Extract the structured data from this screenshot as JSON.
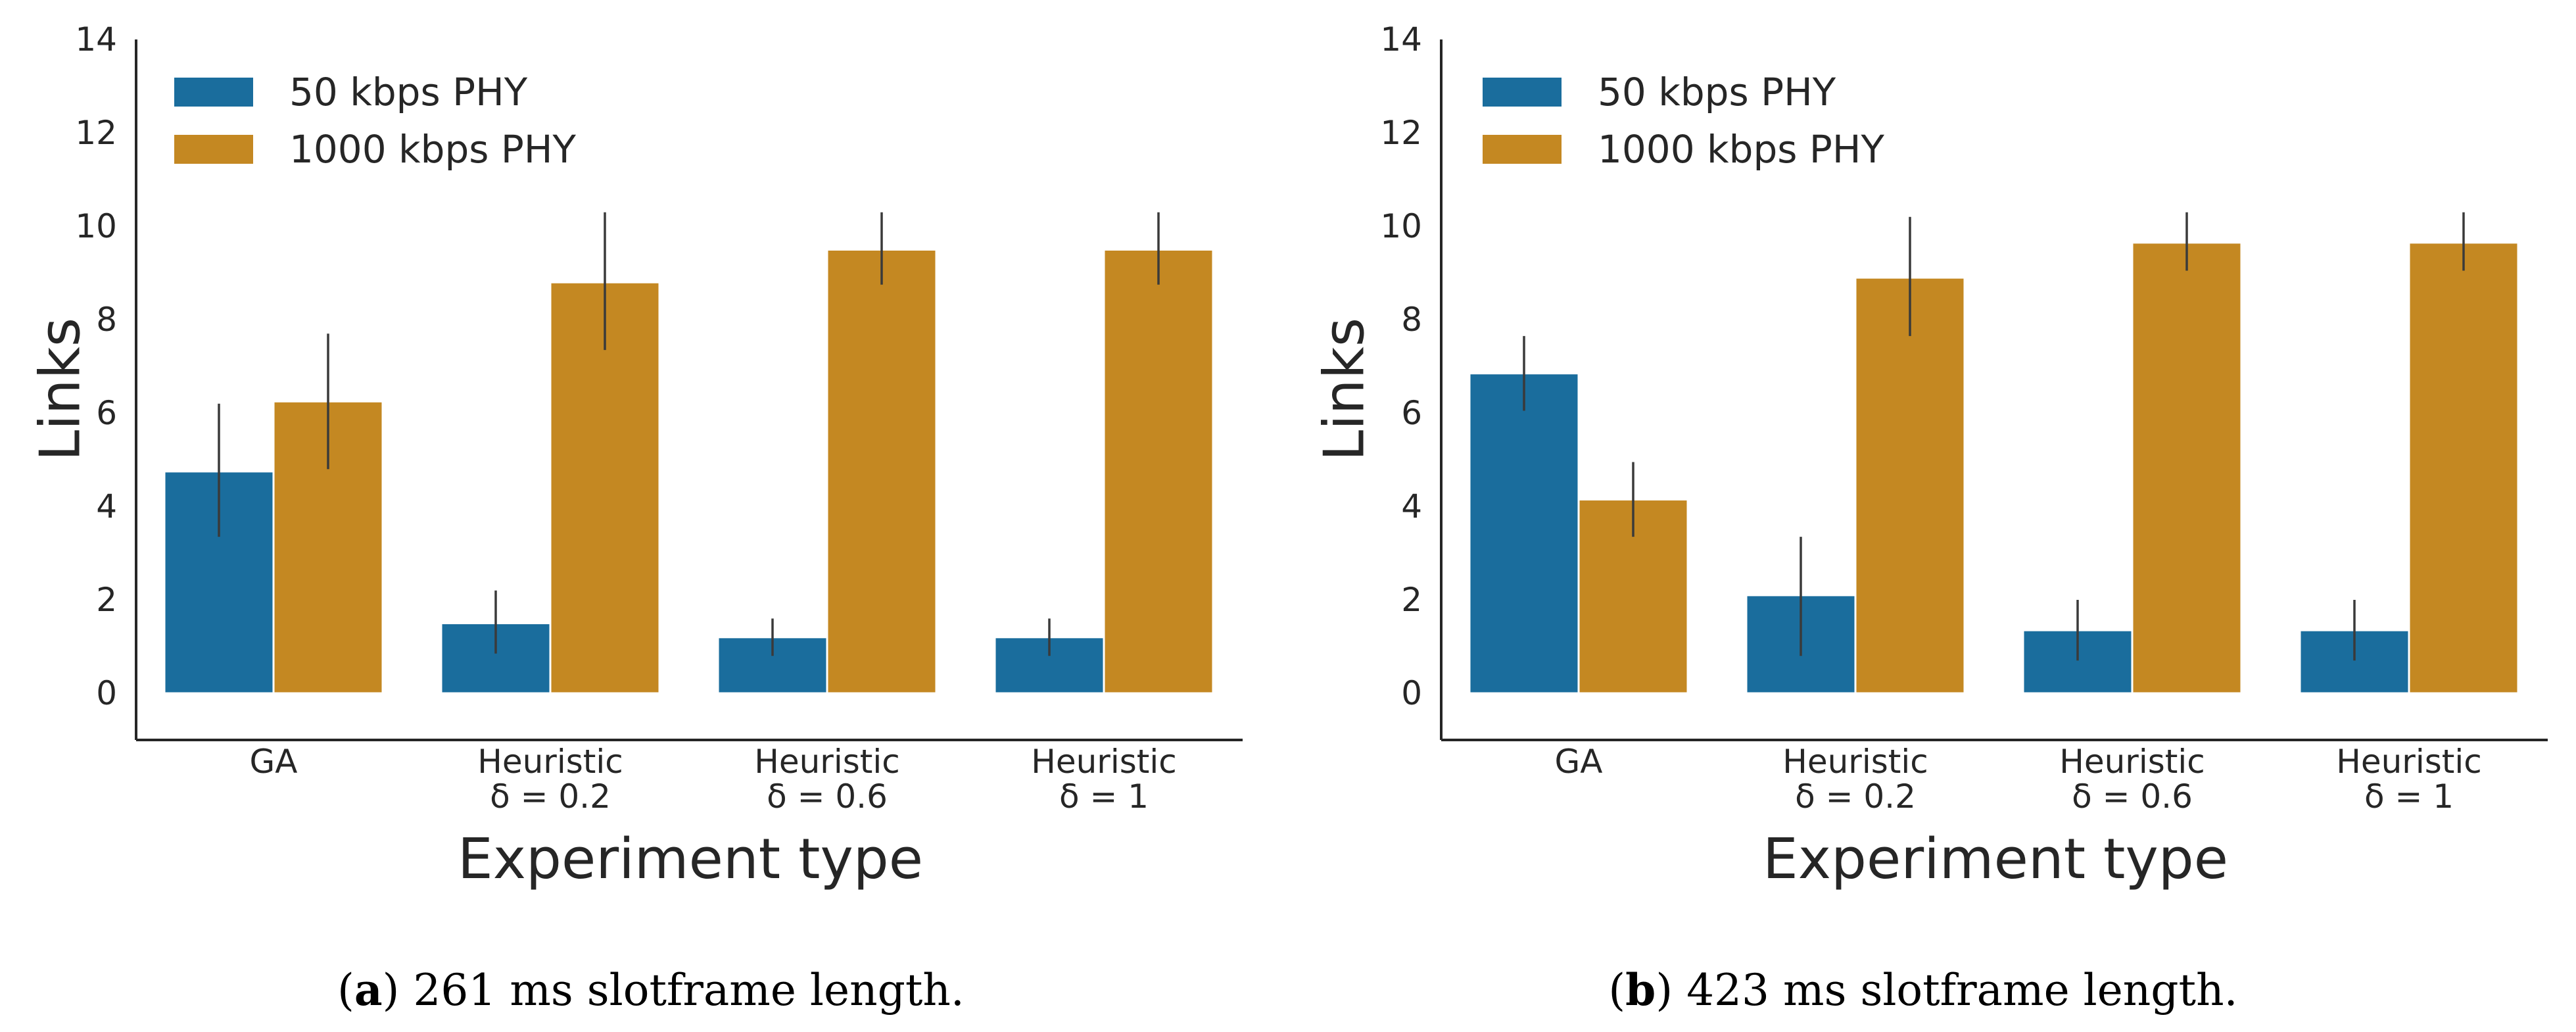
{
  "figure": {
    "captions": [
      {
        "label": "a",
        "text": "261 ms slotframe length."
      },
      {
        "label": "b",
        "text": "423 ms slotframe length."
      }
    ]
  },
  "colors": {
    "series_0": "#1a6d9d",
    "series_1": "#c48822"
  },
  "chart_data": [
    {
      "type": "bar",
      "title": "",
      "xlabel": "Experiment type",
      "ylabel": "Links",
      "ylim": [
        -1,
        14
      ],
      "yticks": [
        "0",
        "2",
        "4",
        "6",
        "8",
        "10",
        "12",
        "14"
      ],
      "ytick_values": [
        0,
        2,
        4,
        6,
        8,
        10,
        12,
        14
      ],
      "categories": [
        {
          "line1": "GA",
          "line2": ""
        },
        {
          "line1": "Heuristic",
          "line2": "δ = 0.2"
        },
        {
          "line1": "Heuristic",
          "line2": "δ = 0.6"
        },
        {
          "line1": "Heuristic",
          "line2": "δ = 1"
        }
      ],
      "legend_position": "top-left",
      "series": [
        {
          "name": "50 kbps PHY",
          "values": [
            4.75,
            1.5,
            1.2,
            1.2
          ],
          "err_low": [
            3.35,
            0.85,
            0.8,
            0.8
          ],
          "err_high": [
            6.2,
            2.2,
            1.6,
            1.6
          ]
        },
        {
          "name": "1000 kbps PHY",
          "values": [
            6.25,
            8.8,
            9.5,
            9.5
          ],
          "err_low": [
            4.8,
            7.35,
            8.75,
            8.75
          ],
          "err_high": [
            7.7,
            10.3,
            10.3,
            10.3
          ]
        }
      ]
    },
    {
      "type": "bar",
      "title": "",
      "xlabel": "Experiment type",
      "ylabel": "Links",
      "ylim": [
        -1,
        14
      ],
      "yticks": [
        "0",
        "2",
        "4",
        "6",
        "8",
        "10",
        "12",
        "14"
      ],
      "ytick_values": [
        0,
        2,
        4,
        6,
        8,
        10,
        12,
        14
      ],
      "categories": [
        {
          "line1": "GA",
          "line2": ""
        },
        {
          "line1": "Heuristic",
          "line2": "δ = 0.2"
        },
        {
          "line1": "Heuristic",
          "line2": "δ = 0.6"
        },
        {
          "line1": "Heuristic",
          "line2": "δ = 1"
        }
      ],
      "legend_position": "top-left",
      "series": [
        {
          "name": "50 kbps PHY",
          "values": [
            6.85,
            2.1,
            1.35,
            1.35
          ],
          "err_low": [
            6.05,
            0.8,
            0.7,
            0.7
          ],
          "err_high": [
            7.65,
            3.35,
            2.0,
            2.0
          ]
        },
        {
          "name": "1000 kbps PHY",
          "values": [
            4.15,
            8.9,
            9.65,
            9.65
          ],
          "err_low": [
            3.35,
            7.65,
            9.05,
            9.05
          ],
          "err_high": [
            4.95,
            10.2,
            10.3,
            10.3
          ]
        }
      ]
    }
  ]
}
